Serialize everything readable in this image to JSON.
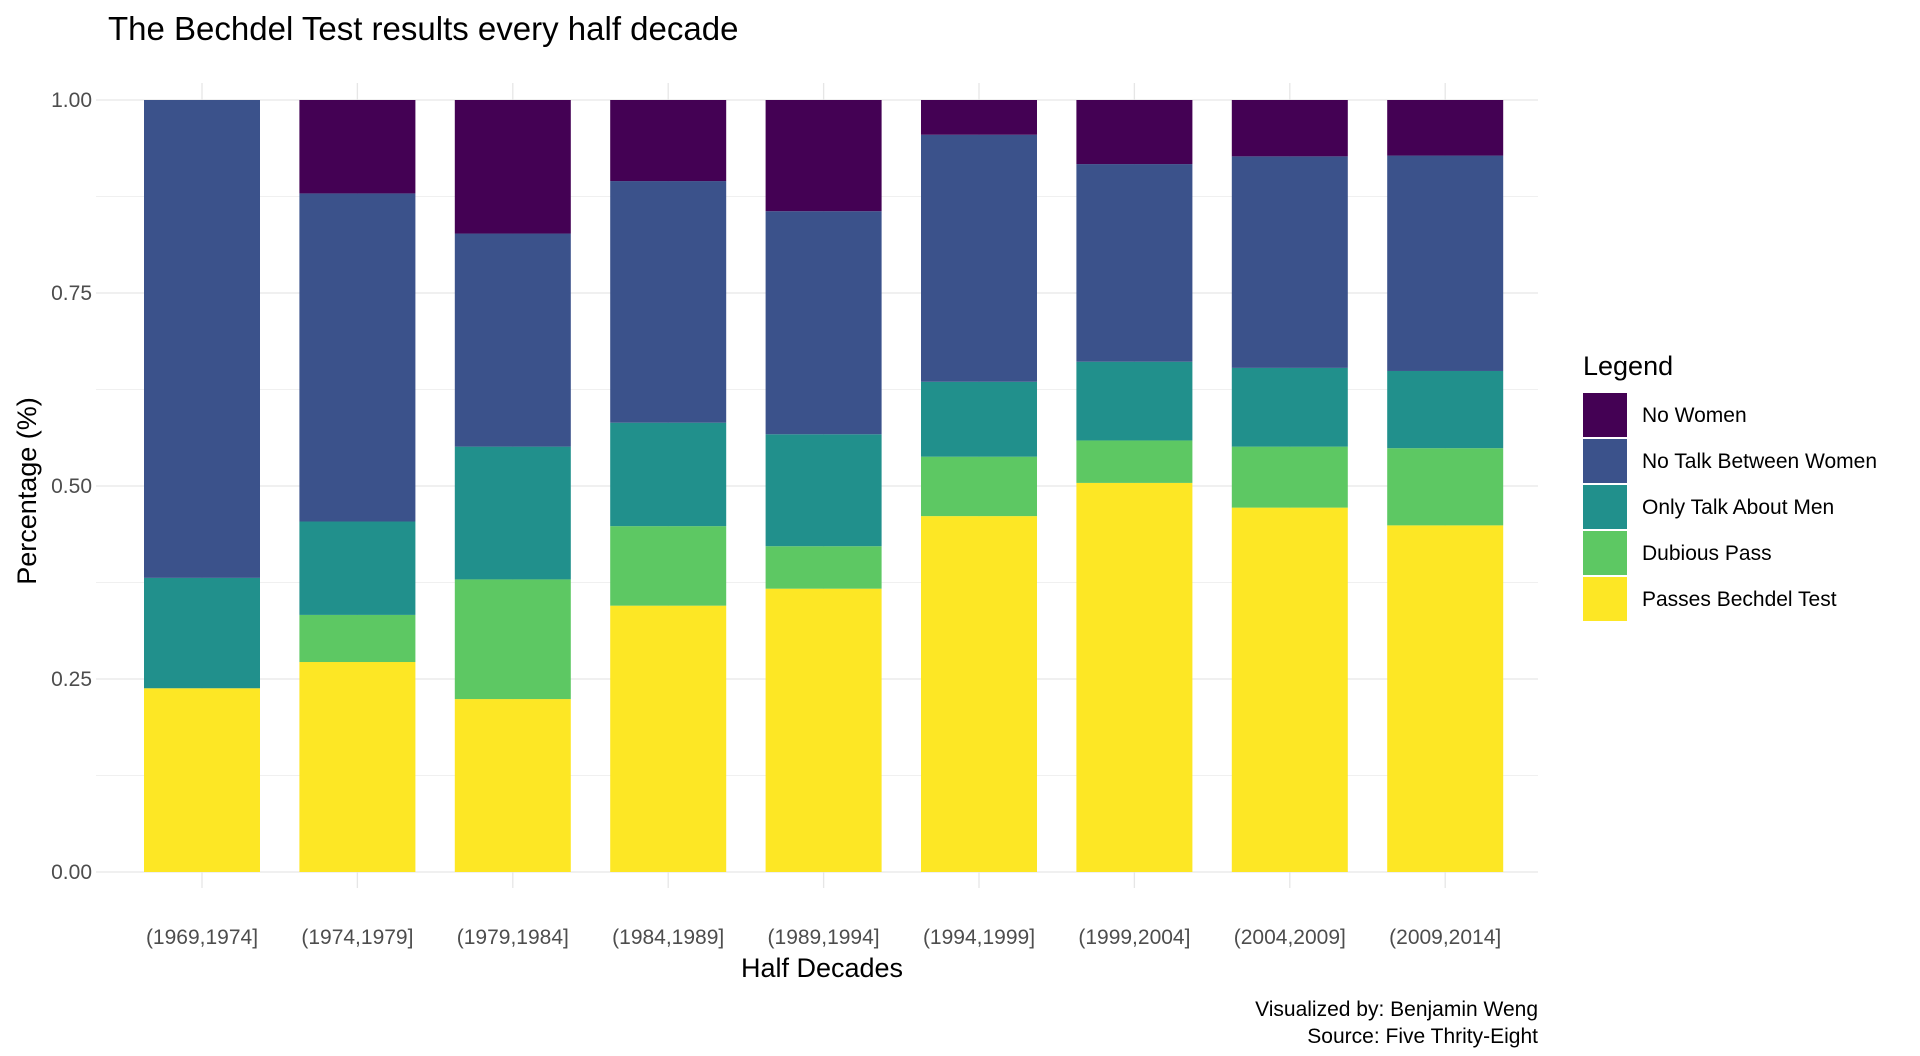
{
  "chart_data": {
    "type": "bar",
    "stacked": true,
    "title": "The Bechdel Test results every half decade",
    "xlabel": "Half Decades",
    "ylabel": "Percentage (%)",
    "ylim": [
      0,
      1
    ],
    "y_ticks": [
      "0.00",
      "0.25",
      "0.50",
      "0.75",
      "1.00"
    ],
    "y_tick_values": [
      0,
      0.25,
      0.5,
      0.75,
      1
    ],
    "grid": true,
    "legend_title": "Legend",
    "legend_position": "right",
    "categories": [
      "(1969,1974]",
      "(1974,1979]",
      "(1979,1984]",
      "(1984,1989]",
      "(1989,1994]",
      "(1994,1999]",
      "(1999,2004]",
      "(2004,2009]",
      "(2009,2014]"
    ],
    "series": [
      {
        "name": "Passes Bechdel Test",
        "color": "#FDE725",
        "values": [
          0.238,
          0.272,
          0.224,
          0.345,
          0.367,
          0.461,
          0.504,
          0.472,
          0.449
        ]
      },
      {
        "name": "Dubious Pass",
        "color": "#5DC863",
        "values": [
          0.0,
          0.061,
          0.155,
          0.103,
          0.055,
          0.077,
          0.055,
          0.079,
          0.1
        ]
      },
      {
        "name": "Only Talk About Men",
        "color": "#21908C",
        "values": [
          0.143,
          0.121,
          0.172,
          0.134,
          0.145,
          0.097,
          0.102,
          0.102,
          0.1
        ]
      },
      {
        "name": "No Talk Between Women",
        "color": "#3B528B",
        "values": [
          0.619,
          0.425,
          0.276,
          0.313,
          0.289,
          0.32,
          0.256,
          0.274,
          0.279
        ]
      },
      {
        "name": "No Women",
        "color": "#440154",
        "values": [
          0.0,
          0.121,
          0.173,
          0.105,
          0.144,
          0.045,
          0.083,
          0.073,
          0.072
        ]
      }
    ],
    "legend_order": [
      "No Women",
      "No Talk Between Women",
      "Only Talk About Men",
      "Dubious Pass",
      "Passes Bechdel Test"
    ],
    "caption": [
      "Visualized by: Benjamin Weng",
      "Source: Five Thrity-Eight"
    ]
  }
}
